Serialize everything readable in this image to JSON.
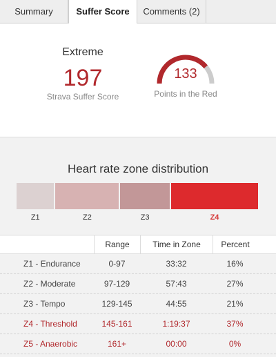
{
  "tabs": [
    {
      "label": "Summary"
    },
    {
      "label": "Suffer Score"
    },
    {
      "label": "Comments (2)"
    }
  ],
  "score": {
    "level": "Extreme",
    "value": "197",
    "caption": "Strava Suffer Score"
  },
  "red_points": {
    "value": "133",
    "caption": "Points in the Red",
    "gauge_fraction": 0.78
  },
  "zones": {
    "title": "Heart rate zone distribution",
    "bars": [
      {
        "label": "Z1",
        "fraction": 0.16,
        "color": "#dcd1d1",
        "active": false
      },
      {
        "label": "Z2",
        "fraction": 0.27,
        "color": "#d7b2b2",
        "active": false
      },
      {
        "label": "Z3",
        "fraction": 0.21,
        "color": "#c29798",
        "active": false
      },
      {
        "label": "Z4",
        "fraction": 0.37,
        "color": "#dd2a2d",
        "active": true
      }
    ]
  },
  "table": {
    "headers": [
      "",
      "Range",
      "Time in Zone",
      "Percent"
    ],
    "rows": [
      {
        "zone": "Z1 - Endurance",
        "range": "0-97",
        "time": "33:32",
        "percent": "16%",
        "highlight": false
      },
      {
        "zone": "Z2 - Moderate",
        "range": "97-129",
        "time": "57:43",
        "percent": "27%",
        "highlight": false
      },
      {
        "zone": "Z3 - Tempo",
        "range": "129-145",
        "time": "44:55",
        "percent": "21%",
        "highlight": false
      },
      {
        "zone": "Z4 - Threshold",
        "range": "145-161",
        "time": "1:19:37",
        "percent": "37%",
        "highlight": true
      },
      {
        "zone": "Z5 - Anaerobic",
        "range": "161+",
        "time": "00:00",
        "percent": "0%",
        "highlight": true
      }
    ]
  },
  "colors": {
    "accent": "#b1282c",
    "gauge_track": "#cccccc"
  }
}
